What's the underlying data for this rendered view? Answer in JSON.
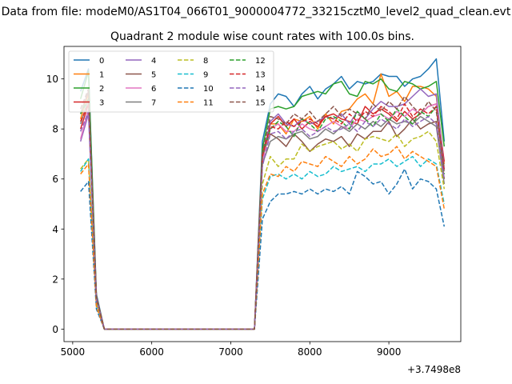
{
  "chart_data": {
    "type": "line",
    "suptitle": "Data from file: modeM0/AS1T04_066T01_9000004772_33215cztM0_level2_quad_clean.evt",
    "title": "Quadrant 2 module wise count rates with 100.0s bins.",
    "xlabel": "",
    "ylabel": "",
    "x_offset_label": "+3.7498e8",
    "xlim": [
      4890,
      9910
    ],
    "ylim": [
      -0.5,
      11.3
    ],
    "xticks": [
      5000,
      6000,
      7000,
      8000,
      9000
    ],
    "yticks": [
      0,
      2,
      4,
      6,
      8,
      10
    ],
    "legend_position": "top-left",
    "legend_columns": 4,
    "x": [
      5100,
      5200,
      5300,
      5400,
      5500,
      5600,
      5700,
      5800,
      5900,
      6000,
      6100,
      6200,
      6300,
      6400,
      6500,
      6600,
      6700,
      6800,
      6900,
      7000,
      7100,
      7200,
      7300,
      7400,
      7500,
      7600,
      7700,
      7800,
      7900,
      8000,
      8100,
      8200,
      8300,
      8400,
      8500,
      8600,
      8700,
      8800,
      8900,
      9000,
      9100,
      9200,
      9300,
      9400,
      9500,
      9600,
      9700
    ],
    "series": [
      {
        "name": "0",
        "color": "#1f77b4",
        "dashed": false,
        "values": [
          9.5,
          10.4,
          1.4,
          0,
          0,
          0,
          0,
          0,
          0,
          0,
          0,
          0,
          0,
          0,
          0,
          0,
          0,
          0,
          0,
          0,
          0,
          0,
          0,
          7.5,
          9.0,
          9.4,
          9.3,
          8.9,
          9.4,
          9.7,
          9.2,
          9.6,
          9.8,
          10.1,
          9.6,
          9.9,
          9.8,
          9.9,
          10.2,
          10.1,
          10.1,
          9.7,
          10.0,
          10.1,
          10.4,
          10.8,
          7.5
        ]
      },
      {
        "name": "1",
        "color": "#ff7f0e",
        "dashed": false,
        "values": [
          8.4,
          9.4,
          1.3,
          0,
          0,
          0,
          0,
          0,
          0,
          0,
          0,
          0,
          0,
          0,
          0,
          0,
          0,
          0,
          0,
          0,
          0,
          0,
          0,
          6.8,
          8.2,
          8.2,
          7.8,
          8.4,
          8.3,
          8.5,
          8.0,
          8.6,
          8.2,
          8.7,
          8.8,
          9.2,
          9.4,
          9.0,
          10.2,
          9.3,
          9.5,
          9.1,
          9.7,
          9.7,
          9.6,
          9.3,
          6.6
        ]
      },
      {
        "name": "2",
        "color": "#2ca02c",
        "dashed": false,
        "values": [
          9.2,
          10.3,
          1.3,
          0,
          0,
          0,
          0,
          0,
          0,
          0,
          0,
          0,
          0,
          0,
          0,
          0,
          0,
          0,
          0,
          0,
          0,
          0,
          0,
          7.2,
          8.8,
          8.9,
          8.8,
          8.9,
          9.3,
          9.4,
          9.5,
          9.4,
          9.8,
          9.9,
          9.4,
          9.3,
          9.9,
          9.8,
          10.0,
          9.6,
          9.5,
          9.9,
          9.8,
          9.6,
          9.7,
          9.9,
          7.3
        ]
      },
      {
        "name": "3",
        "color": "#d62728",
        "dashed": false,
        "values": [
          8.0,
          9.0,
          1.2,
          0,
          0,
          0,
          0,
          0,
          0,
          0,
          0,
          0,
          0,
          0,
          0,
          0,
          0,
          0,
          0,
          0,
          0,
          0,
          0,
          7.0,
          8.2,
          8.5,
          8.1,
          8.4,
          8.0,
          8.3,
          8.1,
          8.5,
          8.6,
          8.4,
          8.3,
          8.2,
          8.9,
          8.6,
          8.8,
          8.6,
          8.3,
          8.7,
          8.4,
          8.6,
          8.9,
          9.0,
          6.7
        ]
      },
      {
        "name": "4",
        "color": "#9467bd",
        "dashed": false,
        "values": [
          7.5,
          8.6,
          1.2,
          0,
          0,
          0,
          0,
          0,
          0,
          0,
          0,
          0,
          0,
          0,
          0,
          0,
          0,
          0,
          0,
          0,
          0,
          0,
          0,
          6.8,
          8.3,
          8.6,
          8.2,
          8.1,
          8.4,
          8.2,
          8.3,
          8.5,
          8.4,
          8.6,
          8.2,
          8.7,
          8.4,
          8.8,
          9.1,
          8.9,
          8.9,
          9.0,
          9.3,
          9.6,
          9.3,
          9.4,
          6.4
        ]
      },
      {
        "name": "5",
        "color": "#8c564b",
        "dashed": false,
        "values": [
          8.6,
          9.5,
          1.3,
          0,
          0,
          0,
          0,
          0,
          0,
          0,
          0,
          0,
          0,
          0,
          0,
          0,
          0,
          0,
          0,
          0,
          0,
          0,
          0,
          6.9,
          7.8,
          7.6,
          7.3,
          7.8,
          7.5,
          7.1,
          7.4,
          7.6,
          7.5,
          7.7,
          7.3,
          7.8,
          7.6,
          7.9,
          7.9,
          8.3,
          7.7,
          8.0,
          8.4,
          8.0,
          8.2,
          8.3,
          6.0
        ]
      },
      {
        "name": "6",
        "color": "#e377c2",
        "dashed": false,
        "values": [
          7.6,
          8.8,
          1.2,
          0,
          0,
          0,
          0,
          0,
          0,
          0,
          0,
          0,
          0,
          0,
          0,
          0,
          0,
          0,
          0,
          0,
          0,
          0,
          0,
          6.7,
          8.0,
          8.2,
          7.9,
          7.9,
          8.2,
          8.0,
          7.9,
          8.1,
          8.3,
          8.1,
          8.0,
          8.4,
          8.3,
          8.5,
          8.6,
          8.4,
          8.7,
          8.5,
          8.8,
          8.6,
          8.9,
          9.0,
          6.3
        ]
      },
      {
        "name": "7",
        "color": "#7f7f7f",
        "dashed": false,
        "values": [
          8.2,
          9.2,
          1.2,
          0,
          0,
          0,
          0,
          0,
          0,
          0,
          0,
          0,
          0,
          0,
          0,
          0,
          0,
          0,
          0,
          0,
          0,
          0,
          0,
          6.6,
          7.5,
          7.7,
          7.6,
          7.8,
          7.9,
          7.6,
          7.7,
          8.0,
          7.8,
          8.1,
          7.9,
          8.2,
          8.0,
          8.3,
          8.1,
          8.4,
          8.2,
          8.3,
          8.2,
          8.5,
          8.3,
          8.1,
          5.8
        ]
      },
      {
        "name": "8",
        "color": "#bcbd22",
        "dashed": true,
        "values": [
          6.4,
          6.8,
          1.0,
          0,
          0,
          0,
          0,
          0,
          0,
          0,
          0,
          0,
          0,
          0,
          0,
          0,
          0,
          0,
          0,
          0,
          0,
          0,
          0,
          5.8,
          6.9,
          6.5,
          6.8,
          6.8,
          7.4,
          7.1,
          7.3,
          7.4,
          7.5,
          7.2,
          7.4,
          7.1,
          7.6,
          7.7,
          7.6,
          7.5,
          7.8,
          7.3,
          7.6,
          7.7,
          7.9,
          7.5,
          5.6
        ]
      },
      {
        "name": "9",
        "color": "#17becf",
        "dashed": true,
        "values": [
          6.3,
          6.8,
          0.9,
          0,
          0,
          0,
          0,
          0,
          0,
          0,
          0,
          0,
          0,
          0,
          0,
          0,
          0,
          0,
          0,
          0,
          0,
          0,
          0,
          5.2,
          6.1,
          6.2,
          6.0,
          6.2,
          6.0,
          6.3,
          6.1,
          6.2,
          6.5,
          6.3,
          6.4,
          6.5,
          6.3,
          6.6,
          6.6,
          6.8,
          6.5,
          6.7,
          6.9,
          6.5,
          6.8,
          6.6,
          5.0
        ]
      },
      {
        "name": "10",
        "color": "#1f77b4",
        "dashed": true,
        "values": [
          5.5,
          5.9,
          0.8,
          0,
          0,
          0,
          0,
          0,
          0,
          0,
          0,
          0,
          0,
          0,
          0,
          0,
          0,
          0,
          0,
          0,
          0,
          0,
          0,
          4.4,
          5.1,
          5.4,
          5.4,
          5.5,
          5.4,
          5.6,
          5.4,
          5.6,
          5.5,
          5.7,
          5.4,
          6.3,
          6.1,
          5.8,
          5.9,
          5.4,
          5.8,
          6.4,
          5.6,
          6.0,
          5.9,
          5.6,
          4.1
        ]
      },
      {
        "name": "11",
        "color": "#ff7f0e",
        "dashed": true,
        "values": [
          6.2,
          6.6,
          0.9,
          0,
          0,
          0,
          0,
          0,
          0,
          0,
          0,
          0,
          0,
          0,
          0,
          0,
          0,
          0,
          0,
          0,
          0,
          0,
          0,
          5.4,
          6.2,
          6.1,
          6.5,
          6.3,
          6.7,
          6.6,
          6.5,
          6.9,
          6.7,
          6.5,
          6.9,
          6.6,
          6.8,
          7.2,
          6.9,
          7.0,
          7.3,
          6.8,
          7.1,
          6.9,
          6.7,
          6.5,
          4.8
        ]
      },
      {
        "name": "12",
        "color": "#2ca02c",
        "dashed": true,
        "values": [
          8.6,
          9.2,
          1.2,
          0,
          0,
          0,
          0,
          0,
          0,
          0,
          0,
          0,
          0,
          0,
          0,
          0,
          0,
          0,
          0,
          0,
          0,
          0,
          0,
          6.9,
          8.0,
          8.3,
          8.1,
          7.7,
          8.4,
          8.2,
          7.9,
          8.4,
          8.5,
          8.3,
          8.0,
          8.7,
          8.4,
          8.1,
          8.6,
          8.3,
          8.8,
          8.5,
          8.2,
          8.7,
          8.5,
          8.9,
          6.2
        ]
      },
      {
        "name": "13",
        "color": "#d62728",
        "dashed": true,
        "values": [
          8.3,
          9.0,
          1.2,
          0,
          0,
          0,
          0,
          0,
          0,
          0,
          0,
          0,
          0,
          0,
          0,
          0,
          0,
          0,
          0,
          0,
          0,
          0,
          0,
          6.9,
          8.1,
          8.0,
          8.3,
          8.1,
          8.3,
          8.4,
          8.2,
          8.5,
          8.4,
          8.2,
          8.6,
          8.3,
          8.7,
          8.5,
          8.9,
          8.7,
          8.4,
          9.0,
          8.5,
          8.8,
          8.6,
          8.9,
          6.3
        ]
      },
      {
        "name": "14",
        "color": "#9467bd",
        "dashed": true,
        "values": [
          7.9,
          8.7,
          1.2,
          0,
          0,
          0,
          0,
          0,
          0,
          0,
          0,
          0,
          0,
          0,
          0,
          0,
          0,
          0,
          0,
          0,
          0,
          0,
          0,
          6.5,
          7.8,
          7.9,
          7.6,
          7.9,
          8.0,
          7.7,
          7.9,
          8.1,
          7.9,
          8.0,
          8.2,
          7.9,
          8.3,
          8.1,
          8.4,
          8.2,
          8.0,
          8.4,
          8.1,
          8.3,
          8.5,
          8.2,
          6.0
        ]
      },
      {
        "name": "15",
        "color": "#8c564b",
        "dashed": true,
        "values": [
          8.8,
          9.6,
          1.3,
          0,
          0,
          0,
          0,
          0,
          0,
          0,
          0,
          0,
          0,
          0,
          0,
          0,
          0,
          0,
          0,
          0,
          0,
          0,
          0,
          7.0,
          8.5,
          8.4,
          8.2,
          8.6,
          8.4,
          8.7,
          8.3,
          8.6,
          8.9,
          8.5,
          8.8,
          8.6,
          8.4,
          9.0,
          8.7,
          9.1,
          8.8,
          9.3,
          8.9,
          8.6,
          9.1,
          8.7,
          6.4
        ]
      }
    ]
  }
}
